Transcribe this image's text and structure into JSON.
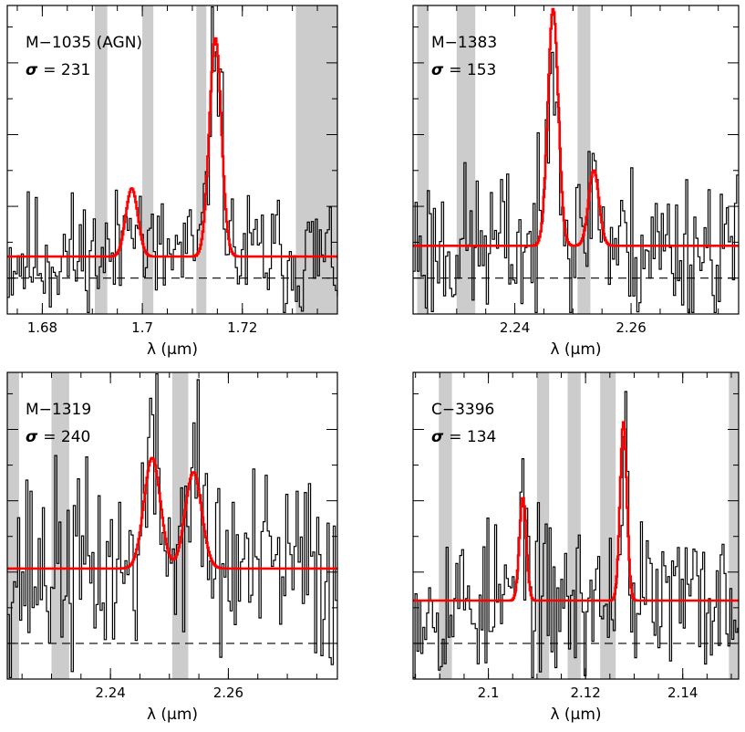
{
  "chart_data": [
    {
      "type": "line",
      "name": "M−1035 (AGN)",
      "sigma_label": "σ",
      "sigma_value": "= 231",
      "xlabel": "λ (μm)",
      "xlim": [
        1.673,
        1.739
      ],
      "ylim": [
        -0.5,
        3.8
      ],
      "xticks": [
        1.68,
        1.7,
        1.72
      ],
      "xtick_labels": [
        "1.68",
        "1.7",
        "1.72"
      ],
      "continuum": 0.0,
      "masked_bands": [
        [
          1.6905,
          1.693
        ],
        [
          1.7,
          1.7022
        ],
        [
          1.7108,
          1.7128
        ],
        [
          1.7307,
          1.739
        ]
      ],
      "fit": {
        "center_left": 1.6978,
        "center_right": 1.7145,
        "amp_left": 0.95,
        "amp_right": 3.05,
        "width": 0.0012,
        "baseline": 0.3
      },
      "noise_seed": 11,
      "noise_amp": 0.45,
      "noise_step": 0.0004,
      "color_fit": "#ff0000",
      "color_data": "#000000",
      "color_mask": "#cccccc"
    },
    {
      "type": "line",
      "name": "M−1383",
      "sigma_label": "σ",
      "sigma_value": "= 153",
      "xlabel": "λ (μm)",
      "xlim": [
        2.2225,
        2.2785
      ],
      "ylim": [
        -0.5,
        3.8
      ],
      "xticks": [
        2.24,
        2.26
      ],
      "xtick_labels": [
        "2.24",
        "2.26"
      ],
      "continuum": 0.0,
      "masked_bands": [
        [
          2.2232,
          2.2252
        ],
        [
          2.23,
          2.2332
        ],
        [
          2.2508,
          2.253
        ]
      ],
      "fit": {
        "center_left": 2.2465,
        "center_right": 2.2535,
        "amp_left": 3.3,
        "amp_right": 1.05,
        "width": 0.0009,
        "baseline": 0.45
      },
      "noise_seed": 23,
      "noise_amp": 0.55,
      "noise_step": 0.00035,
      "color_fit": "#ff0000",
      "color_data": "#000000",
      "color_mask": "#cccccc"
    },
    {
      "type": "line",
      "name": "M−1319",
      "sigma_label": "σ",
      "sigma_value": "= 240",
      "xlabel": "λ (μm)",
      "xlim": [
        2.2225,
        2.2785
      ],
      "ylim": [
        -0.5,
        3.8
      ],
      "xticks": [
        2.24,
        2.26
      ],
      "xtick_labels": [
        "2.24",
        "2.26"
      ],
      "continuum": 0.0,
      "masked_bands": [
        [
          2.2225,
          2.2245
        ],
        [
          2.23,
          2.233
        ],
        [
          2.2505,
          2.2532
        ]
      ],
      "fit": {
        "center_left": 2.247,
        "center_right": 2.254,
        "amp_left": 1.55,
        "amp_right": 1.35,
        "width": 0.0014,
        "baseline": 1.05
      },
      "noise_seed": 37,
      "noise_amp": 0.7,
      "noise_step": 0.00035,
      "color_fit": "#ff0000",
      "color_data": "#000000",
      "color_mask": "#cccccc"
    },
    {
      "type": "line",
      "name": "C−3396",
      "sigma_label": "σ",
      "sigma_value": "= 134",
      "xlabel": "λ (μm)",
      "xlim": [
        2.0845,
        2.1515
      ],
      "ylim": [
        -0.5,
        3.8
      ],
      "xticks": [
        2.1,
        2.12,
        2.14
      ],
      "xtick_labels": [
        "2.1",
        "2.12",
        "2.14"
      ],
      "continuum": 0.0,
      "masked_bands": [
        [
          2.0898,
          2.0925
        ],
        [
          2.11,
          2.1125
        ],
        [
          2.1163,
          2.119
        ],
        [
          2.123,
          2.1262
        ],
        [
          2.1495,
          2.1515
        ]
      ],
      "fit": {
        "center_left": 2.107,
        "center_right": 2.1277,
        "amp_left": 1.45,
        "amp_right": 2.5,
        "width": 0.0007,
        "baseline": 0.6
      },
      "noise_seed": 53,
      "noise_amp": 0.55,
      "noise_step": 0.0004,
      "color_fit": "#ff0000",
      "color_data": "#000000",
      "color_mask": "#cccccc"
    }
  ]
}
